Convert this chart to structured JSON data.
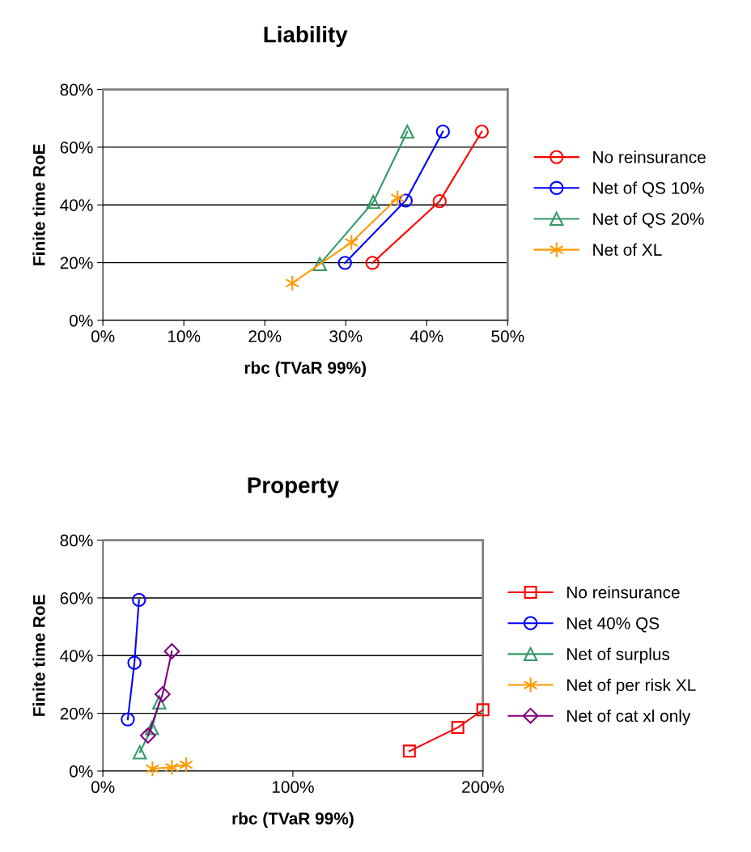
{
  "chart_data": [
    {
      "type": "line",
      "title": "Liability",
      "xlabel": "rbc (TVaR 99%)",
      "ylabel": "Finite time RoE",
      "xlim": [
        0,
        0.5
      ],
      "xticks": [
        {
          "value": 0,
          "label": "0%"
        },
        {
          "value": 0.1,
          "label": "10%"
        },
        {
          "value": 0.2,
          "label": "20%"
        },
        {
          "value": 0.3,
          "label": "30%"
        },
        {
          "value": 0.4,
          "label": "40%"
        },
        {
          "value": 0.5,
          "label": "50%"
        }
      ],
      "ylim": [
        0,
        0.8
      ],
      "yticks": [
        {
          "value": 0,
          "label": "0%"
        },
        {
          "value": 0.2,
          "label": "20%"
        },
        {
          "value": 0.4,
          "label": "40%"
        },
        {
          "value": 0.6,
          "label": "60%"
        },
        {
          "value": 0.8,
          "label": "80%"
        }
      ],
      "grid": "y",
      "legend": "right",
      "series": [
        {
          "name": "No reinsurance",
          "color": "#ff0000",
          "marker": "circle",
          "x": [
            0.333,
            0.416,
            0.468
          ],
          "values": [
            0.199,
            0.413,
            0.654
          ]
        },
        {
          "name": "Net of QS 10%",
          "color": "#0000ff",
          "marker": "circle",
          "x": [
            0.299,
            0.374,
            0.42
          ],
          "values": [
            0.199,
            0.415,
            0.654
          ]
        },
        {
          "name": "Net of QS 20%",
          "color": "#339966",
          "marker": "triangle",
          "x": [
            0.268,
            0.334,
            0.376
          ],
          "values": [
            0.195,
            0.41,
            0.654
          ]
        },
        {
          "name": "Net of XL",
          "color": "#ff9900",
          "marker": "cross",
          "x": [
            0.234,
            0.307,
            0.364
          ],
          "values": [
            0.129,
            0.27,
            0.424
          ]
        }
      ]
    },
    {
      "type": "line",
      "title": "Property",
      "xlabel": "rbc (TVaR 99%)",
      "ylabel": "Finite time RoE",
      "xlim": [
        0,
        2.0
      ],
      "xticks": [
        {
          "value": 0,
          "label": "0%"
        },
        {
          "value": 1.0,
          "label": "100%"
        },
        {
          "value": 2.0,
          "label": "200%"
        }
      ],
      "ylim": [
        0,
        0.8
      ],
      "yticks": [
        {
          "value": 0,
          "label": "0%"
        },
        {
          "value": 0.2,
          "label": "20%"
        },
        {
          "value": 0.4,
          "label": "40%"
        },
        {
          "value": 0.6,
          "label": "60%"
        },
        {
          "value": 0.8,
          "label": "80%"
        }
      ],
      "grid": "y",
      "legend": "right",
      "series": [
        {
          "name": "No reinsurance",
          "color": "#ff0000",
          "marker": "square",
          "x": [
            1.613,
            1.868,
            2.0
          ],
          "values": [
            0.069,
            0.151,
            0.212
          ]
        },
        {
          "name": "Net 40% QS",
          "color": "#0000ff",
          "marker": "circle",
          "x": [
            0.131,
            0.166,
            0.19
          ],
          "values": [
            0.179,
            0.375,
            0.593
          ]
        },
        {
          "name": "Net of surplus",
          "color": "#339966",
          "marker": "triangle",
          "x": [
            0.194,
            0.258,
            0.297
          ],
          "values": [
            0.065,
            0.149,
            0.238
          ]
        },
        {
          "name": "Net of per risk XL",
          "color": "#ff9900",
          "marker": "cross",
          "x": [
            0.261,
            0.363,
            0.438
          ],
          "values": [
            0.008,
            0.013,
            0.022
          ]
        },
        {
          "name": "Net of cat xl only",
          "color": "#800080",
          "marker": "diamond",
          "x": [
            0.237,
            0.314,
            0.363
          ],
          "values": [
            0.123,
            0.266,
            0.415
          ]
        }
      ]
    }
  ]
}
